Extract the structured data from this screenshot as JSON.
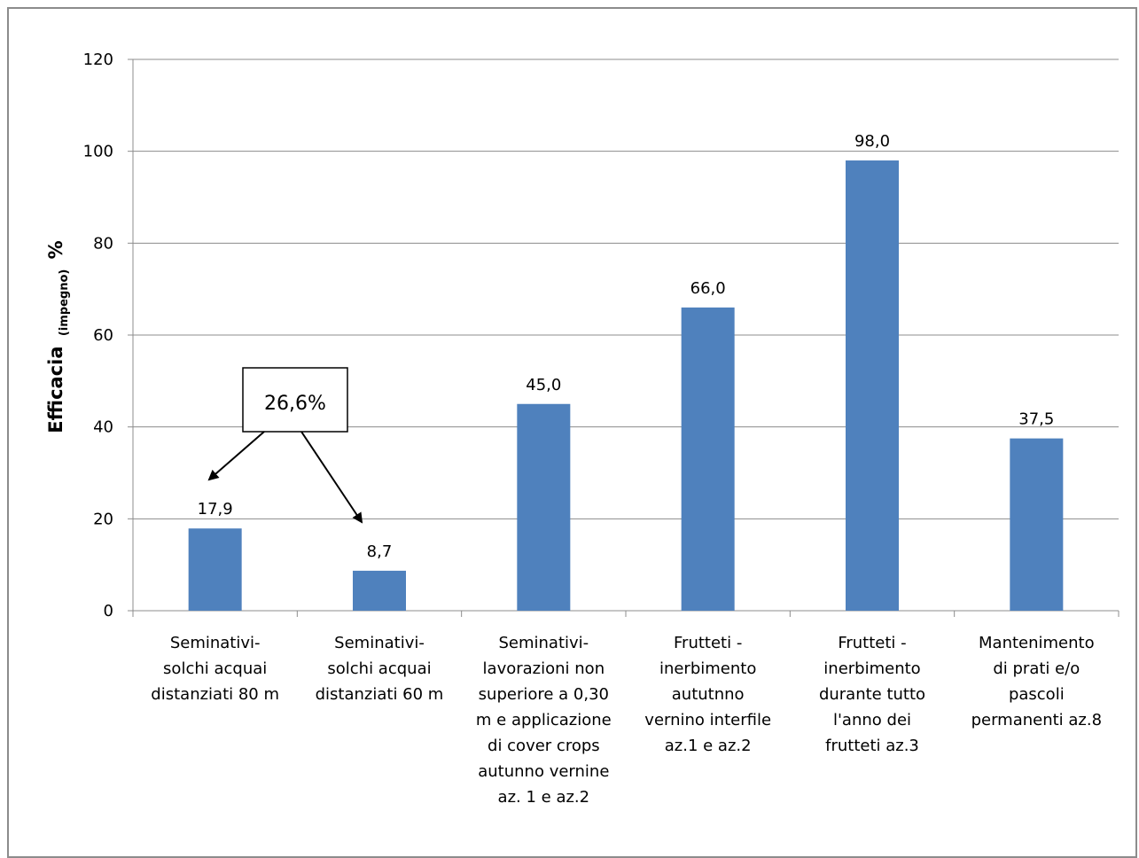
{
  "chart_data": {
    "type": "bar",
    "categories": [
      [
        "Seminativi-",
        "solchi acquai",
        "distanziati 80 m"
      ],
      [
        "Seminativi-",
        "solchi acquai",
        "distanziati 60 m"
      ],
      [
        "Seminativi-",
        "lavorazioni  non",
        "superiore a 0,30",
        "m e applicazione",
        "di cover crops",
        "autunno vernine",
        "az. 1 e az.2"
      ],
      [
        "Frutteti -",
        "inerbimento",
        "aututnno",
        "vernino  interfile",
        "az.1 e az.2"
      ],
      [
        "Frutteti -",
        "inerbimento",
        "durante tutto",
        "l'anno dei",
        "frutteti az.3"
      ],
      [
        "Mantenimento",
        "di prati e/o",
        "pascoli",
        "permanenti az.8"
      ]
    ],
    "values": [
      17.9,
      8.7,
      45.0,
      66.0,
      98.0,
      37.5
    ],
    "data_labels": [
      "17,9",
      "8,7",
      "45,0",
      "66,0",
      "98,0",
      "37,5"
    ],
    "ylabel_main": "Efficacia",
    "ylabel_sub": "(impegno)",
    "ylabel_unit": "%",
    "ylim": [
      0,
      120
    ],
    "yticks": [
      0,
      20,
      40,
      60,
      80,
      100,
      120
    ],
    "grid": true,
    "bar_color": "#4f81bd",
    "annotation": {
      "text": "26,6%",
      "points_to": [
        0,
        1
      ]
    }
  }
}
